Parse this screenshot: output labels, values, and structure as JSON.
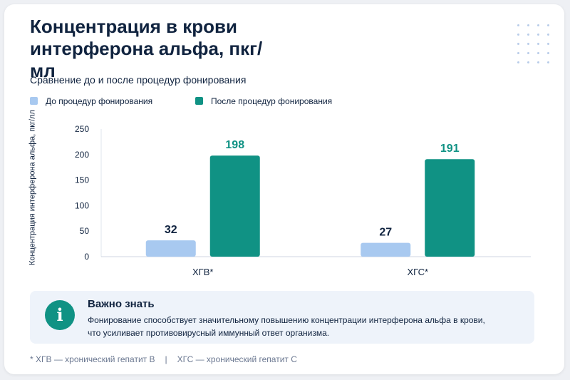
{
  "header": {
    "title": "Концентрация в крови интерферона альфа, пкг/мл",
    "subtitle": "Сравнение до и после процедур фонирования"
  },
  "legend": {
    "before": "До процедур фонирования",
    "after": "После процедур фонирования"
  },
  "colors": {
    "before": "#a8c9f0",
    "after": "#109284",
    "text": "#10233f"
  },
  "info": {
    "title": "Важно знать",
    "text": "Фонирование способствует значительному повышению концентрации интерферона альфа в крови, что усиливает противовирусный иммунный ответ организма.",
    "icon": "info-icon"
  },
  "footer": {
    "note1": "* ХГВ — хронический гепатит В",
    "separator": "|",
    "note2": "ХГС — хронический гепатит С"
  },
  "chart_data": {
    "type": "bar",
    "title": "Концентрация в крови интерферона альфа, пкг/мл",
    "subtitle": "Сравнение до и после процедур фонирования",
    "categories": [
      "ХГВ*",
      "ХГС*"
    ],
    "series": [
      {
        "name": "До процедур фонирования",
        "values": [
          32,
          27
        ]
      },
      {
        "name": "После процедур фонирования",
        "values": [
          198,
          191
        ]
      }
    ],
    "xlabel": "",
    "ylabel": "Концентрация интерферона альфа, пкг/лл",
    "ylim": [
      0,
      250
    ],
    "yticks": [
      0,
      50,
      100,
      150,
      200,
      250
    ],
    "grid": false,
    "legend_position": "top-left",
    "data_labels": true
  }
}
